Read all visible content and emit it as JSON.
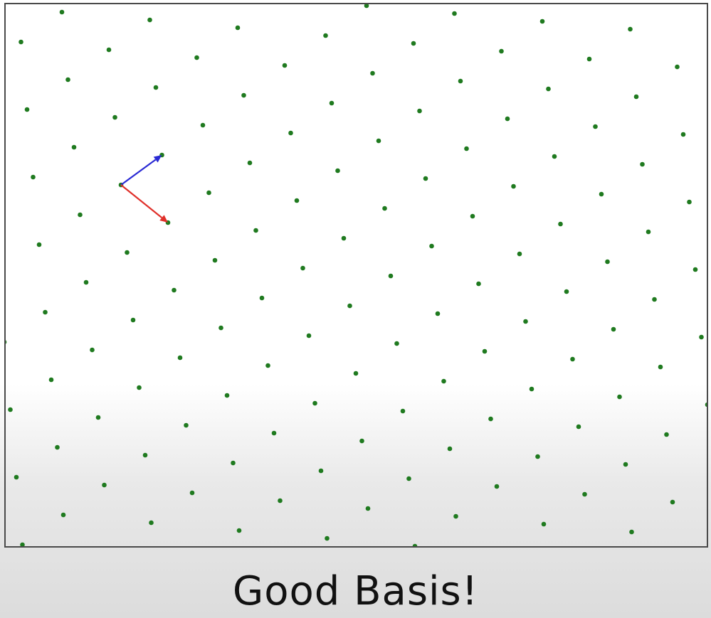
{
  "caption": "Good Basis!",
  "colors": {
    "lattice_point": "#1f7a1f",
    "basis_vector_1": "#2a2ad4",
    "basis_vector_2": "#e0302a",
    "frame_border": "#4a4a4a",
    "caption_text": "#111111"
  }
}
